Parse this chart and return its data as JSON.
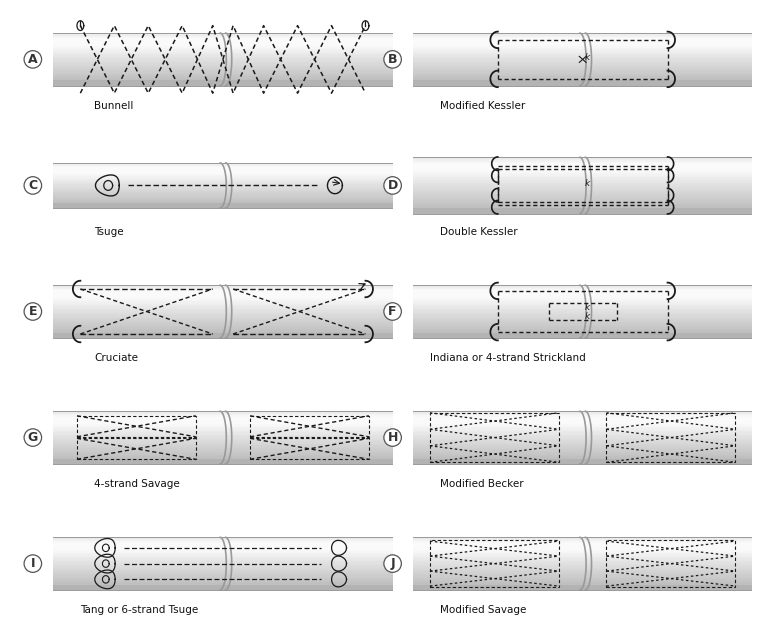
{
  "figure_size": [
    7.6,
    6.23
  ],
  "dpi": 100,
  "background": "#ffffff",
  "panels": [
    {
      "id": "A",
      "label": "Bunnell",
      "col": 0,
      "row": 0
    },
    {
      "id": "B",
      "label": "Modified Kessler",
      "col": 1,
      "row": 0
    },
    {
      "id": "C",
      "label": "Tsuge",
      "col": 0,
      "row": 1
    },
    {
      "id": "D",
      "label": "Double Kessler",
      "col": 1,
      "row": 1
    },
    {
      "id": "E",
      "label": "Cruciate",
      "col": 0,
      "row": 2
    },
    {
      "id": "F",
      "label": "Indiana or 4-strand Strickland",
      "col": 1,
      "row": 2
    },
    {
      "id": "G",
      "label": "4-strand Savage",
      "col": 0,
      "row": 3
    },
    {
      "id": "H",
      "label": "Modified Becker",
      "col": 1,
      "row": 3
    },
    {
      "id": "I",
      "label": "Tang or 6-strand Tsuge",
      "col": 0,
      "row": 4
    },
    {
      "id": "J",
      "label": "Modified Savage",
      "col": 1,
      "row": 4
    }
  ],
  "suture_color": "#1a1a1a",
  "label_color": "#111111",
  "tendon_grad": [
    "#ffffff",
    "#e8e8e8",
    "#cccccc",
    "#b8b8b8",
    "#d0d0d0",
    "#e8e8e8"
  ],
  "repair_line_color": "#aaaaaa"
}
